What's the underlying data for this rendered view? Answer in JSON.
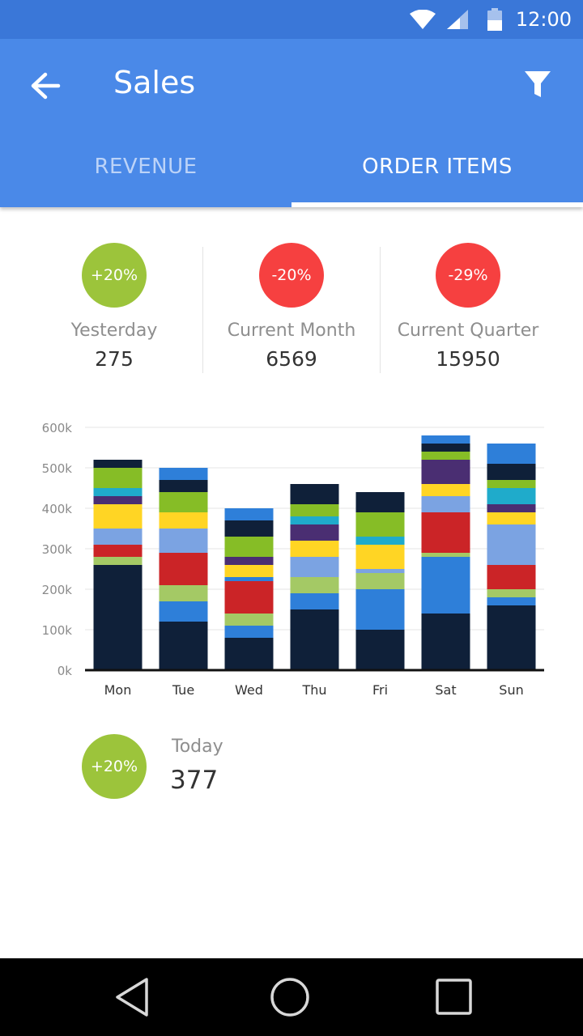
{
  "status_bar": {
    "time": "12:00"
  },
  "app_bar": {
    "title": "Sales"
  },
  "tabs": [
    {
      "label": "REVENUE",
      "selected": false
    },
    {
      "label": "ORDER ITEMS",
      "selected": true
    }
  ],
  "stats": [
    {
      "badge": "+20%",
      "badge_color": "#9cc43b",
      "label": "Yesterday",
      "value": "275"
    },
    {
      "badge": "-20%",
      "badge_color": "#f64040",
      "label": "Current Month",
      "value": "6569"
    },
    {
      "badge": "-29%",
      "badge_color": "#f64040",
      "label": "Current Quarter",
      "value": "15950"
    }
  ],
  "today": {
    "badge": "+20%",
    "badge_color": "#9cc43b",
    "label": "Today",
    "value": "377"
  },
  "chart_data": {
    "type": "bar",
    "stacked": true,
    "categories": [
      "Mon",
      "Tue",
      "Wed",
      "Thu",
      "Fri",
      "Sat",
      "Sun"
    ],
    "ylim": [
      0,
      600000
    ],
    "y_ticks": [
      "0k",
      "100k",
      "200k",
      "300k",
      "400k",
      "500k",
      "600k"
    ],
    "grid": true,
    "legend": "none",
    "segment_colors": [
      "#0f2039",
      "#a4c965",
      "#cb2427",
      "#7ba3e2",
      "#ffd524",
      "#4a2e72",
      "#1fabcb",
      "#86bd26",
      "#2e7fd9"
    ],
    "stacks": [
      [
        {
          "c": "#0f2039",
          "v": 260000
        },
        {
          "c": "#a4c965",
          "v": 20000
        },
        {
          "c": "#cb2427",
          "v": 30000
        },
        {
          "c": "#7ba3e2",
          "v": 40000
        },
        {
          "c": "#ffd524",
          "v": 60000
        },
        {
          "c": "#4a2e72",
          "v": 20000
        },
        {
          "c": "#1fabcb",
          "v": 20000
        },
        {
          "c": "#86bd26",
          "v": 50000
        },
        {
          "c": "#0f2039",
          "v": 20000
        }
      ],
      [
        {
          "c": "#0f2039",
          "v": 120000
        },
        {
          "c": "#2e7fd9",
          "v": 50000
        },
        {
          "c": "#a4c965",
          "v": 40000
        },
        {
          "c": "#cb2427",
          "v": 80000
        },
        {
          "c": "#7ba3e2",
          "v": 60000
        },
        {
          "c": "#ffd524",
          "v": 40000
        },
        {
          "c": "#86bd26",
          "v": 50000
        },
        {
          "c": "#0f2039",
          "v": 30000
        },
        {
          "c": "#2e7fd9",
          "v": 30000
        }
      ],
      [
        {
          "c": "#0f2039",
          "v": 80000
        },
        {
          "c": "#2e7fd9",
          "v": 30000
        },
        {
          "c": "#a4c965",
          "v": 30000
        },
        {
          "c": "#cb2427",
          "v": 80000
        },
        {
          "c": "#2e7fd9",
          "v": 10000
        },
        {
          "c": "#ffd524",
          "v": 30000
        },
        {
          "c": "#4a2e72",
          "v": 20000
        },
        {
          "c": "#86bd26",
          "v": 50000
        },
        {
          "c": "#0f2039",
          "v": 40000
        },
        {
          "c": "#2e7fd9",
          "v": 30000
        }
      ],
      [
        {
          "c": "#0f2039",
          "v": 150000
        },
        {
          "c": "#2e7fd9",
          "v": 40000
        },
        {
          "c": "#a4c965",
          "v": 40000
        },
        {
          "c": "#7ba3e2",
          "v": 50000
        },
        {
          "c": "#ffd524",
          "v": 40000
        },
        {
          "c": "#4a2e72",
          "v": 40000
        },
        {
          "c": "#1fabcb",
          "v": 20000
        },
        {
          "c": "#86bd26",
          "v": 30000
        },
        {
          "c": "#0f2039",
          "v": 50000
        }
      ],
      [
        {
          "c": "#0f2039",
          "v": 100000
        },
        {
          "c": "#2e7fd9",
          "v": 100000
        },
        {
          "c": "#a4c965",
          "v": 40000
        },
        {
          "c": "#7ba3e2",
          "v": 10000
        },
        {
          "c": "#ffd524",
          "v": 60000
        },
        {
          "c": "#1fabcb",
          "v": 20000
        },
        {
          "c": "#86bd26",
          "v": 60000
        },
        {
          "c": "#0f2039",
          "v": 50000
        }
      ],
      [
        {
          "c": "#0f2039",
          "v": 140000
        },
        {
          "c": "#2e7fd9",
          "v": 140000
        },
        {
          "c": "#a4c965",
          "v": 10000
        },
        {
          "c": "#cb2427",
          "v": 100000
        },
        {
          "c": "#7ba3e2",
          "v": 40000
        },
        {
          "c": "#ffd524",
          "v": 30000
        },
        {
          "c": "#4a2e72",
          "v": 60000
        },
        {
          "c": "#86bd26",
          "v": 20000
        },
        {
          "c": "#0f2039",
          "v": 20000
        },
        {
          "c": "#2e7fd9",
          "v": 20000
        }
      ],
      [
        {
          "c": "#0f2039",
          "v": 160000
        },
        {
          "c": "#2e7fd9",
          "v": 20000
        },
        {
          "c": "#a4c965",
          "v": 20000
        },
        {
          "c": "#cb2427",
          "v": 60000
        },
        {
          "c": "#7ba3e2",
          "v": 100000
        },
        {
          "c": "#ffd524",
          "v": 30000
        },
        {
          "c": "#4a2e72",
          "v": 20000
        },
        {
          "c": "#1fabcb",
          "v": 40000
        },
        {
          "c": "#86bd26",
          "v": 20000
        },
        {
          "c": "#0f2039",
          "v": 40000
        },
        {
          "c": "#2e7fd9",
          "v": 50000
        }
      ]
    ]
  }
}
